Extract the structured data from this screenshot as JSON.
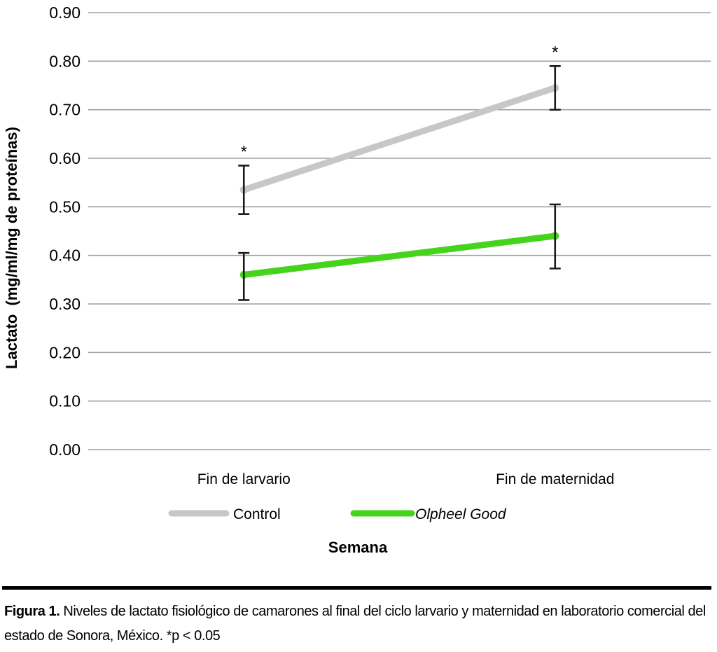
{
  "chart_data": {
    "type": "line",
    "title": "",
    "xlabel": "Semana",
    "ylabel": "Lactato  (mg/ml/mg de proteínas)",
    "categories": [
      "Fin de larvario",
      "Fin de maternidad"
    ],
    "series": [
      {
        "name": "Control",
        "color": "#c7c7c7",
        "values": [
          0.535,
          0.745
        ],
        "error_low": [
          0.485,
          0.7
        ],
        "error_high": [
          0.585,
          0.79
        ],
        "annotations": [
          "*",
          "*"
        ]
      },
      {
        "name": "Olpheel Good",
        "color": "#45d41b",
        "values": [
          0.36,
          0.44
        ],
        "error_low": [
          0.308,
          0.373
        ],
        "error_high": [
          0.405,
          0.505
        ],
        "annotations": [
          "",
          ""
        ]
      }
    ],
    "ylim": [
      0.0,
      0.9
    ],
    "yticks": [
      {
        "label": "0.00",
        "value": 0.0
      },
      {
        "label": "0.10",
        "value": 0.1
      },
      {
        "label": "0.20",
        "value": 0.2
      },
      {
        "label": "0.30",
        "value": 0.3
      },
      {
        "label": "0.40",
        "value": 0.4
      },
      {
        "label": "0.50",
        "value": 0.5
      },
      {
        "label": "0.60",
        "value": 0.6
      },
      {
        "label": "0.70",
        "value": 0.7
      },
      {
        "label": "0.80",
        "value": 0.8
      },
      {
        "label": "0.90",
        "value": 0.9
      }
    ],
    "grid": true,
    "gridline_color": "#9f9f9f",
    "error_bar_color": "#1c1c1c",
    "annotation_color": "#474747",
    "legend_position": "bottom"
  },
  "caption": {
    "label": "Figura 1.",
    "text": "Niveles de lactato fisiológico de camarones al final del ciclo larvario y maternidad en laboratorio comercial del estado de Sonora, México. *p < 0.05"
  }
}
